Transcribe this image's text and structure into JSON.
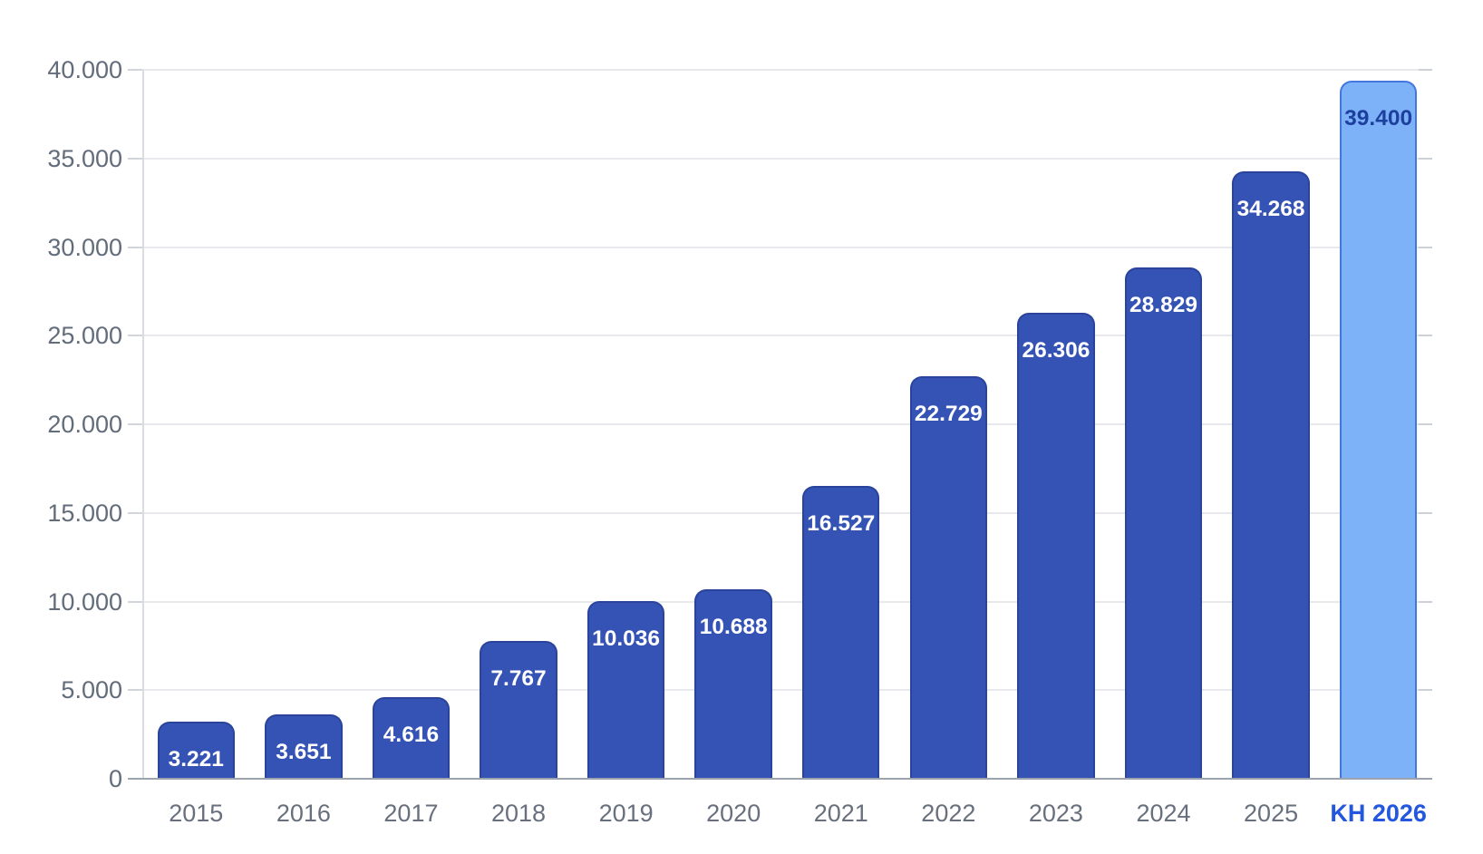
{
  "chart_data": {
    "type": "bar",
    "title": "",
    "xlabel": "",
    "ylabel": "",
    "categories": [
      "2015",
      "2016",
      "2017",
      "2018",
      "2019",
      "2020",
      "2021",
      "2022",
      "2023",
      "2024",
      "2025",
      "KH 2026"
    ],
    "values": [
      3221,
      3651,
      4616,
      7767,
      10036,
      10688,
      16527,
      22729,
      26306,
      28829,
      34268,
      39400
    ],
    "value_labels": [
      "3.221",
      "3.651",
      "4.616",
      "7.767",
      "10.036",
      "10.688",
      "16.527",
      "22.729",
      "26.306",
      "28.829",
      "34.268",
      "39.400"
    ],
    "ylim": [
      0,
      40000
    ],
    "y_ticks": [
      0,
      5000,
      10000,
      15000,
      20000,
      25000,
      30000,
      35000,
      40000
    ],
    "y_tick_labels": [
      "0",
      "5.000",
      "10.000",
      "15.000",
      "20.000",
      "25.000",
      "30.000",
      "35.000",
      "40.000"
    ],
    "grid": true,
    "legend_position": "none",
    "highlight_index": 11,
    "colors": {
      "bar_fill": "#3453b5",
      "bar_border": "#2a449c",
      "highlight_fill": "#7db1f8",
      "highlight_border": "#4377de",
      "value_label": "#ffffff",
      "highlight_value_label": "#1d3f9e",
      "grid_line": "#e7e9ed",
      "y_axis_line": "#d9dce0",
      "x_axis_line": "#9ba3ae",
      "tick_mark": "#d2d6db",
      "tick_mark_right": "#cdd1d7",
      "y_tick_label": "#626c7a",
      "x_tick_label": "#68707e",
      "highlight_x_tick_label": "#2457df",
      "background": "#ffffff"
    }
  }
}
